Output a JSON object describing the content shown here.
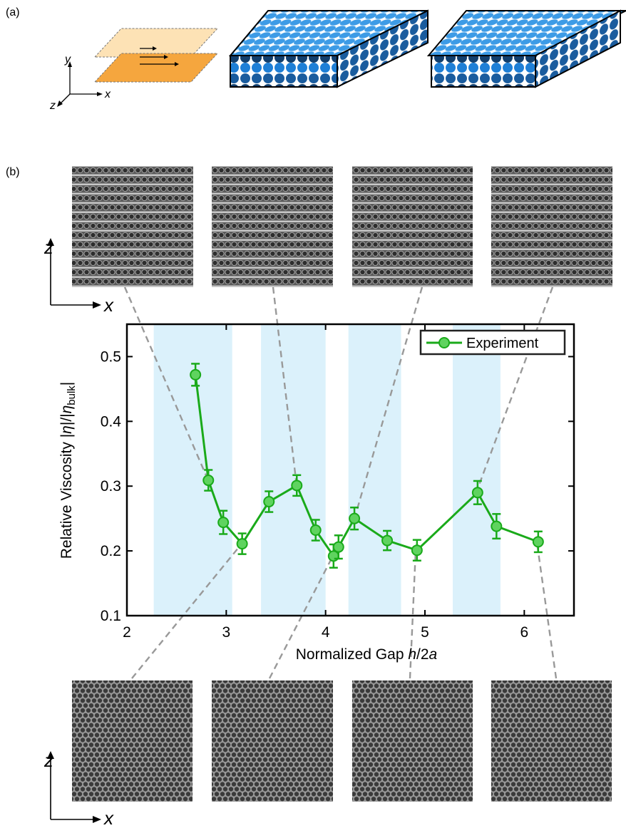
{
  "panel_labels": [
    "(a)",
    "(b)"
  ],
  "schematic_axes": {
    "y": "y",
    "x": "x",
    "z": "z"
  },
  "inset_axes": {
    "top": {
      "z": "z",
      "x": "x"
    },
    "bottom": {
      "z": "z",
      "x": "x"
    }
  },
  "chart_data": {
    "type": "line",
    "ylabel_parts": [
      "Relative Viscosity |",
      "η",
      "|/|",
      "η",
      "bulk",
      "|"
    ],
    "xlabel_parts": [
      "Normalized Gap ",
      "h",
      "/2",
      "a"
    ],
    "xlim": [
      2,
      6.5
    ],
    "ylim": [
      0.1,
      0.55
    ],
    "xticks": [
      2,
      3,
      4,
      5,
      6
    ],
    "yticks": [
      0.1,
      0.2,
      0.3,
      0.4,
      0.5
    ],
    "bands": [
      [
        2.27,
        3.06
      ],
      [
        3.35,
        4.0
      ],
      [
        4.23,
        4.76
      ],
      [
        5.28,
        5.76
      ]
    ],
    "band_color": "#dbf1fb",
    "legend": "top-right",
    "series": [
      {
        "name": "Experiment",
        "color": "#1aaa1a",
        "x": [
          2.69,
          2.82,
          2.97,
          3.16,
          3.43,
          3.71,
          3.9,
          4.08,
          4.13,
          4.29,
          4.62,
          4.92,
          5.53,
          5.72,
          6.14
        ],
        "values": [
          0.472,
          0.309,
          0.244,
          0.211,
          0.276,
          0.301,
          0.232,
          0.192,
          0.206,
          0.25,
          0.216,
          0.201,
          0.29,
          0.238,
          0.214
        ],
        "errors": [
          0.017,
          0.016,
          0.018,
          0.016,
          0.016,
          0.016,
          0.016,
          0.018,
          0.018,
          0.017,
          0.015,
          0.016,
          0.018,
          0.019,
          0.016
        ]
      }
    ]
  }
}
